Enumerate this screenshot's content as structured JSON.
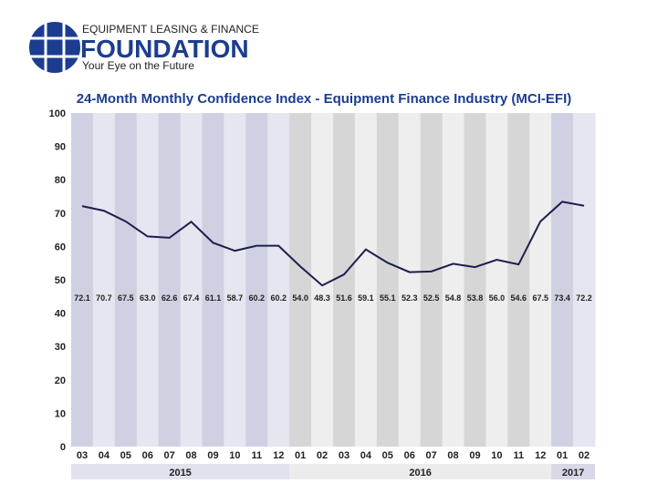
{
  "logo": {
    "line1": "EQUIPMENT LEASING & FINANCE",
    "line2": "FOUNDATION",
    "tagline": "Your Eye on the Future",
    "color": "#1c3d8f"
  },
  "chart_data": {
    "type": "line",
    "title": "24-Month Monthly Confidence Index - Equipment Finance Industry (MCI-EFI)",
    "xlabel": "",
    "ylabel": "",
    "ylim": [
      0,
      100
    ],
    "yticks": [
      0,
      10,
      20,
      30,
      40,
      50,
      60,
      70,
      80,
      90,
      100
    ],
    "grid": false,
    "categories": [
      "03",
      "04",
      "05",
      "06",
      "07",
      "08",
      "09",
      "10",
      "11",
      "12",
      "01",
      "02",
      "03",
      "04",
      "05",
      "06",
      "07",
      "08",
      "09",
      "10",
      "11",
      "12",
      "01",
      "02"
    ],
    "years": [
      {
        "label": "2015",
        "months": 10,
        "color": "#e2e2ee"
      },
      {
        "label": "2016",
        "months": 12,
        "color": "#ececec"
      },
      {
        "label": "2017",
        "months": 2,
        "color": "#d8d8e8"
      }
    ],
    "series": [
      {
        "values": [
          72.1,
          70.7,
          67.5,
          63.0,
          62.6,
          67.4,
          61.1,
          58.7,
          60.2,
          60.2,
          54.0,
          48.3,
          51.6,
          59.1,
          55.1,
          52.3,
          52.5,
          54.8,
          53.8,
          56.0,
          54.6,
          67.5,
          73.4,
          72.2
        ],
        "color": "#1c1f4e"
      }
    ],
    "colors": {
      "title": "#1c3d8f",
      "purple_dark": "#d0d0e3",
      "purple_light": "#e6e6f0",
      "grey_dark": "#d6d6d6",
      "grey_light": "#eeeeee"
    }
  }
}
